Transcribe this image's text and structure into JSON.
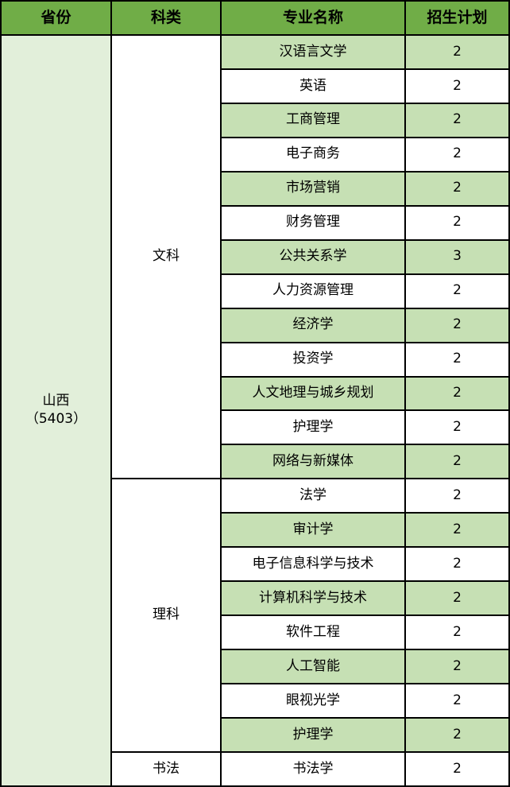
{
  "colors": {
    "header": "#70ad47",
    "row_alt": "#c6e0b4",
    "province": "#e2efda"
  },
  "headers": [
    "省份",
    "科类",
    "专业名称",
    "招生计划"
  ],
  "province": {
    "name": "山西",
    "code": "（5403）"
  },
  "groups": [
    {
      "category": "文科",
      "rows": [
        {
          "major": "汉语言文学",
          "plan": "2"
        },
        {
          "major": "英语",
          "plan": "2"
        },
        {
          "major": "工商管理",
          "plan": "2"
        },
        {
          "major": "电子商务",
          "plan": "2"
        },
        {
          "major": "市场营销",
          "plan": "2"
        },
        {
          "major": "财务管理",
          "plan": "2"
        },
        {
          "major": "公共关系学",
          "plan": "3"
        },
        {
          "major": "人力资源管理",
          "plan": "2"
        },
        {
          "major": "经济学",
          "plan": "2"
        },
        {
          "major": "投资学",
          "plan": "2"
        },
        {
          "major": "人文地理与城乡规划",
          "plan": "2"
        },
        {
          "major": "护理学",
          "plan": "2"
        },
        {
          "major": "网络与新媒体",
          "plan": "2"
        }
      ]
    },
    {
      "category": "理科",
      "rows": [
        {
          "major": "法学",
          "plan": "2"
        },
        {
          "major": "审计学",
          "plan": "2"
        },
        {
          "major": "电子信息科学与技术",
          "plan": "2"
        },
        {
          "major": "计算机科学与技术",
          "plan": "2"
        },
        {
          "major": "软件工程",
          "plan": "2"
        },
        {
          "major": "人工智能",
          "plan": "2"
        },
        {
          "major": "眼视光学",
          "plan": "2"
        },
        {
          "major": "护理学",
          "plan": "2"
        }
      ]
    },
    {
      "category": "书法",
      "rows": [
        {
          "major": "书法学",
          "plan": "2"
        }
      ]
    }
  ]
}
